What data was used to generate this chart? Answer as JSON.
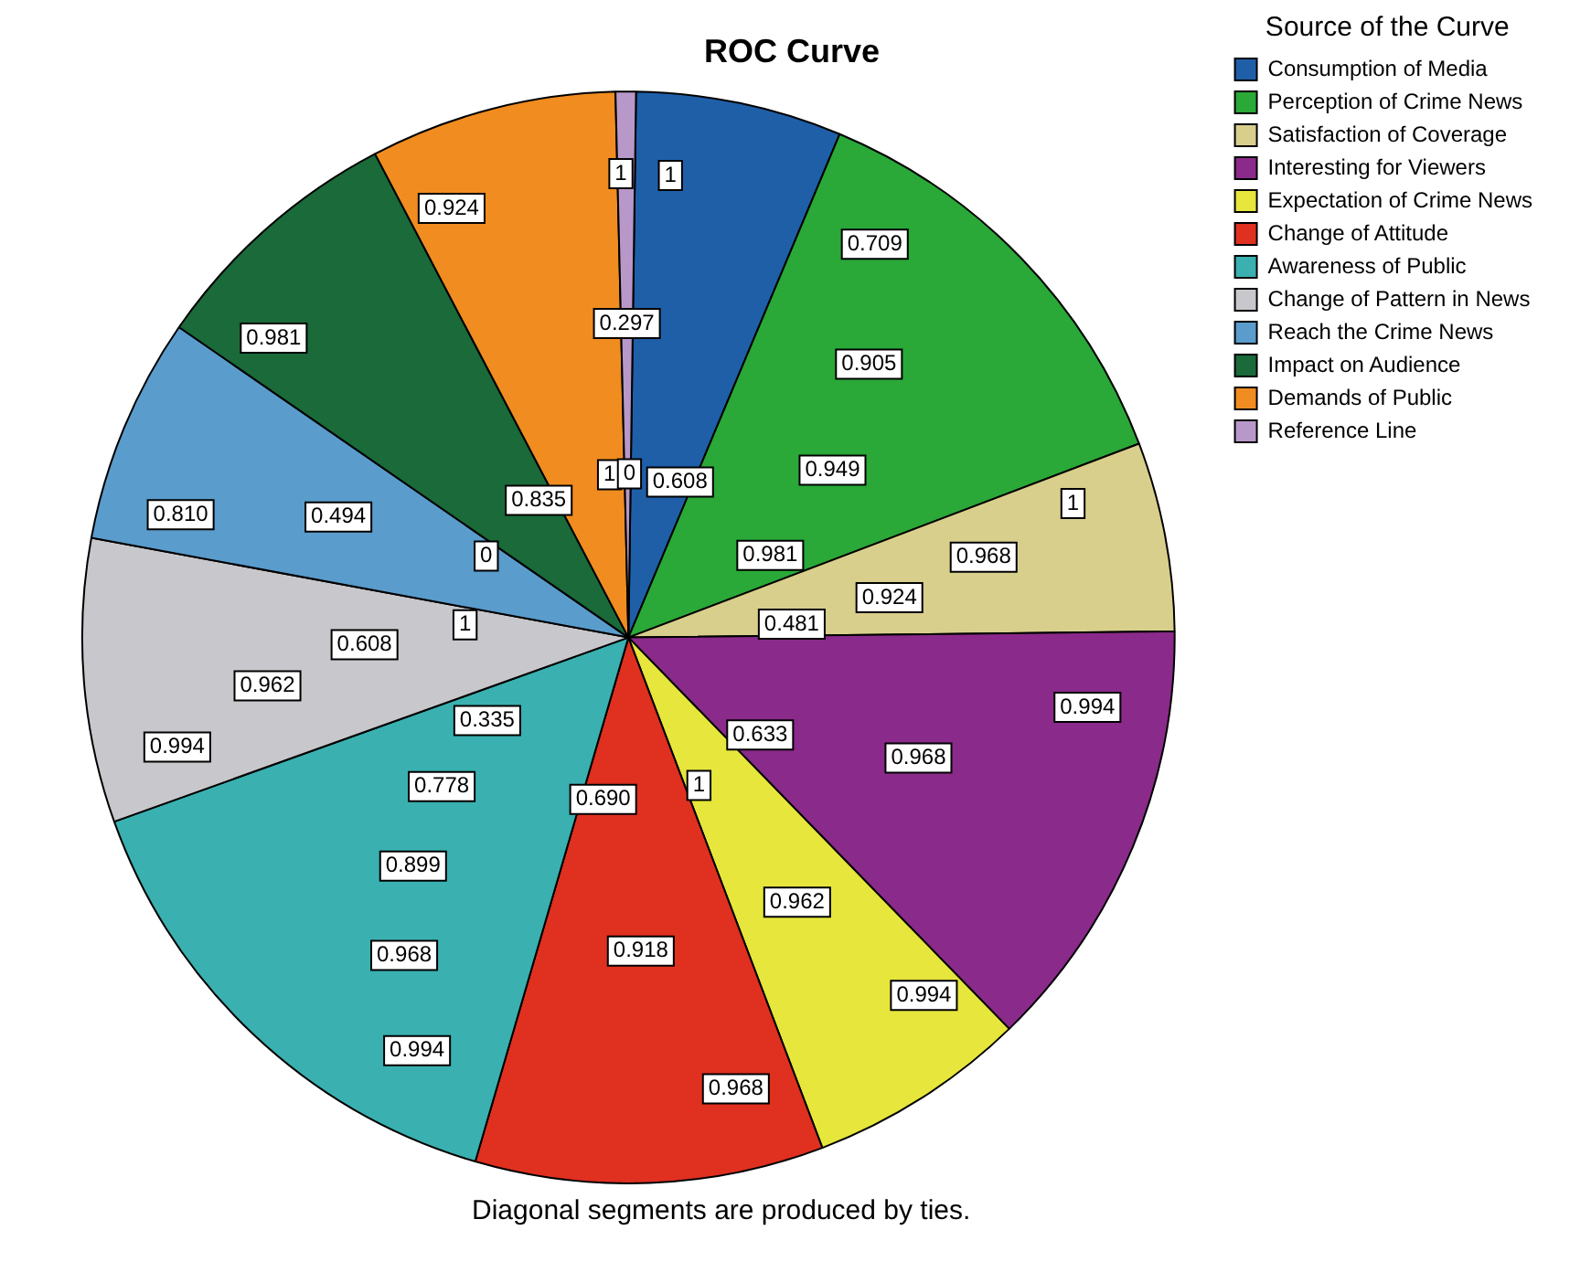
{
  "chart_data": {
    "type": "pie",
    "title": "ROC Curve",
    "legend_title": "Source of the Curve",
    "legend": "top right",
    "categories": [
      "Consumption of Media",
      "Perception of Crime News",
      "Satisfaction of Coverage",
      "Interesting for Viewers",
      "Expectation of Crime News",
      "Change of Attitude",
      "Awareness of Public",
      "Change of Pattern in News",
      "Reach the Crime News",
      "Impact on Audience",
      "Demands of Public",
      "Reference Line"
    ],
    "values": [
      6.1,
      12.9,
      5.6,
      12.9,
      6.5,
      10.3,
      15.0,
      8.4,
      6.7,
      7.7,
      7.3,
      0.6
    ],
    "colors": [
      "#1f5fa8",
      "#2aa838",
      "#d8cf8c",
      "#8a2a8a",
      "#e6e63c",
      "#e03020",
      "#3ab0b0",
      "#c8c8cc",
      "#5a9ccc",
      "#1a6a3a",
      "#f08c20",
      "#b898c8"
    ],
    "annotations": [
      {
        "text": "1",
        "x": "Consumption of Media"
      },
      {
        "text": "0.608",
        "x": "Consumption of Media"
      },
      {
        "text": "0.709",
        "x": "Perception of Crime News"
      },
      {
        "text": "0.905",
        "x": "Perception of Crime News"
      },
      {
        "text": "0.949",
        "x": "Perception of Crime News"
      },
      {
        "text": "0.981",
        "x": "Perception of Crime News"
      },
      {
        "text": "1",
        "x": "Satisfaction of Coverage"
      },
      {
        "text": "0.968",
        "x": "Satisfaction of Coverage"
      },
      {
        "text": "0.924",
        "x": "Satisfaction of Coverage"
      },
      {
        "text": "0.481",
        "x": "Satisfaction of Coverage"
      },
      {
        "text": "0.994",
        "x": "Interesting for Viewers"
      },
      {
        "text": "0.968",
        "x": "Interesting for Viewers"
      },
      {
        "text": "0.633",
        "x": "Interesting for Viewers"
      },
      {
        "text": "0.994",
        "x": "Expectation of Crime News"
      },
      {
        "text": "0.962",
        "x": "Expectation of Crime News"
      },
      {
        "text": "1",
        "x": "Expectation of Crime News"
      },
      {
        "text": "0.968",
        "x": "Change of Attitude"
      },
      {
        "text": "0.918",
        "x": "Change of Attitude"
      },
      {
        "text": "0.690",
        "x": "Change of Attitude"
      },
      {
        "text": "0.994",
        "x": "Awareness of Public"
      },
      {
        "text": "0.968",
        "x": "Awareness of Public"
      },
      {
        "text": "0.899",
        "x": "Awareness of Public"
      },
      {
        "text": "0.778",
        "x": "Awareness of Public"
      },
      {
        "text": "0.335",
        "x": "Awareness of Public"
      },
      {
        "text": "0.994",
        "x": "Change of Pattern in News"
      },
      {
        "text": "0.962",
        "x": "Change of Pattern in News"
      },
      {
        "text": "0.608",
        "x": "Change of Pattern in News"
      },
      {
        "text": "1",
        "x": "Change of Pattern in News"
      },
      {
        "text": "0.810",
        "x": "Reach the Crime News"
      },
      {
        "text": "0.494",
        "x": "Reach the Crime News"
      },
      {
        "text": "0",
        "x": "Reach the Crime News"
      },
      {
        "text": "0.981",
        "x": "Impact on Audience"
      },
      {
        "text": "0.835",
        "x": "Impact on Audience"
      },
      {
        "text": "0.924",
        "x": "Demands of Public"
      },
      {
        "text": "1",
        "x": "Demands of Public"
      },
      {
        "text": "1",
        "x": "Reference Line"
      },
      {
        "text": "0.297",
        "x": "Reference Line"
      },
      {
        "text": "0",
        "x": "Reference Line"
      },
      "Diagonal segments are produced by ties."
    ]
  }
}
